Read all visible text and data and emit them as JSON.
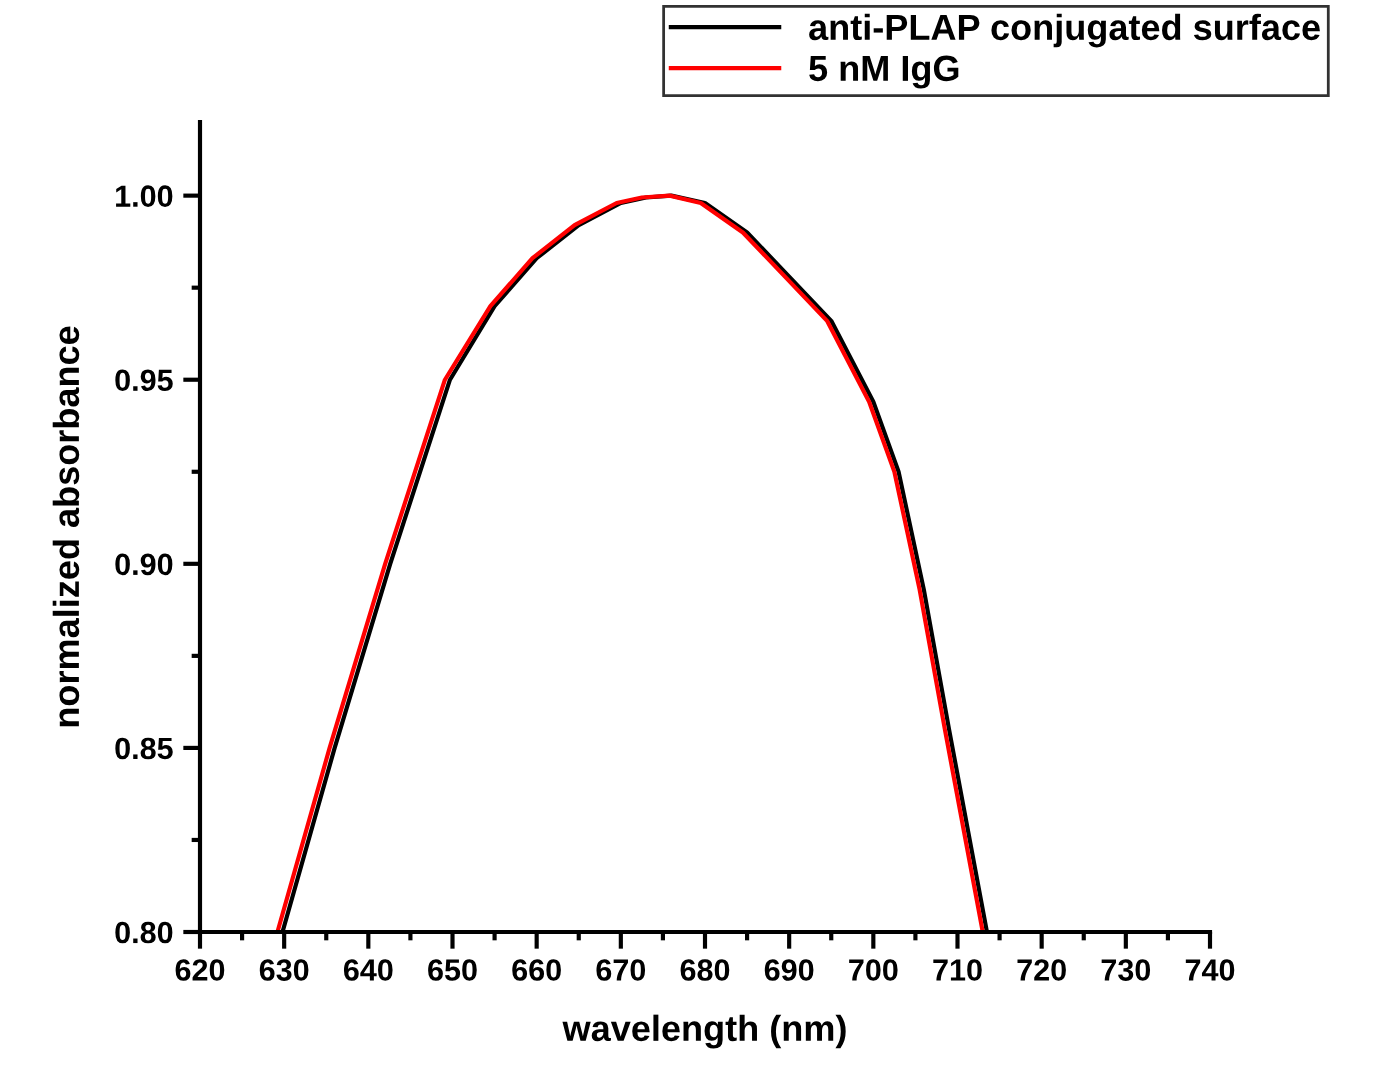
{
  "chart_data": {
    "type": "line",
    "xlabel": "wavelength (nm)",
    "ylabel": "normalized absorbance",
    "xlim": [
      620,
      740
    ],
    "xticks": [
      620,
      630,
      640,
      650,
      660,
      670,
      680,
      690,
      700,
      710,
      720,
      730,
      740
    ],
    "ylim": [
      0.8,
      1.02
    ],
    "yticks": [
      {
        "value": 0.8,
        "label": "0.80"
      },
      {
        "value": 0.85,
        "label": "0.85"
      },
      {
        "value": 0.9,
        "label": "0.90"
      },
      {
        "value": 0.95,
        "label": "0.95"
      },
      {
        "value": 1.0,
        "label": "1.00"
      }
    ],
    "grid": false,
    "legend": "top right",
    "line_style": "solid",
    "marker": "none",
    "series": [
      {
        "name": "anti-PLAP conjugated surface",
        "color": "#000000",
        "x": [
          629.8,
          636,
          642.6,
          649.7,
          655,
          660,
          665,
          670,
          673,
          676,
          680,
          685,
          690,
          695,
          700,
          703,
          706,
          709,
          713.5
        ],
        "values": [
          0.8,
          0.85,
          0.9,
          0.95,
          0.97,
          0.983,
          0.992,
          0.998,
          0.9995,
          1.0,
          0.998,
          0.99,
          0.978,
          0.966,
          0.944,
          0.925,
          0.893,
          0.855,
          0.8
        ]
      },
      {
        "name": "5 nM IgG",
        "color": "#ff0000",
        "x": [
          629.2,
          635.4,
          642.0,
          649.1,
          654.5,
          659.5,
          664.5,
          669.5,
          672.5,
          675.8,
          679.5,
          684.5,
          689.5,
          694.5,
          699.5,
          702.5,
          705.5,
          708.5,
          713.0
        ],
        "values": [
          0.8,
          0.85,
          0.9,
          0.95,
          0.97,
          0.983,
          0.992,
          0.998,
          0.9995,
          1.0,
          0.998,
          0.99,
          0.978,
          0.966,
          0.944,
          0.925,
          0.893,
          0.855,
          0.8
        ]
      }
    ]
  }
}
